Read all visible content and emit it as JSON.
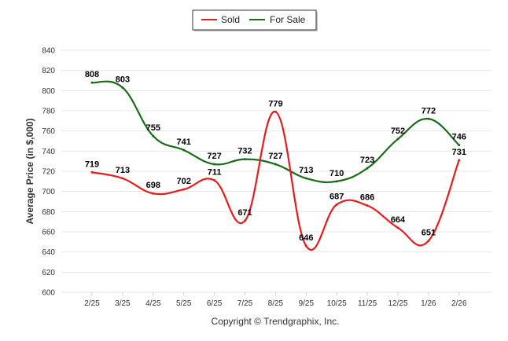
{
  "chart_data": {
    "type": "line",
    "categories": [
      "2/25",
      "3/25",
      "4/25",
      "5/25",
      "6/25",
      "7/25",
      "8/25",
      "9/25",
      "10/25",
      "11/25",
      "12/25",
      "1/26",
      "2/26"
    ],
    "series": [
      {
        "name": "Sold",
        "color": "#e31d1d",
        "values": [
          719,
          713,
          698,
          702,
          711,
          671,
          779,
          646,
          687,
          686,
          664,
          651,
          731
        ]
      },
      {
        "name": "For Sale",
        "color": "#1b6b1b",
        "values": [
          808,
          803,
          755,
          741,
          727,
          732,
          727,
          713,
          710,
          723,
          752,
          772,
          746
        ]
      }
    ],
    "ylabel": "Average Price (in $,000)",
    "xlabel": "",
    "ylim": [
      600,
      840
    ],
    "yticks": [
      600,
      620,
      640,
      660,
      680,
      700,
      720,
      740,
      760,
      780,
      800,
      820,
      840
    ],
    "grid": true,
    "legend_position": "top-center",
    "copyright": "Copyright © Trendgraphix, Inc."
  }
}
